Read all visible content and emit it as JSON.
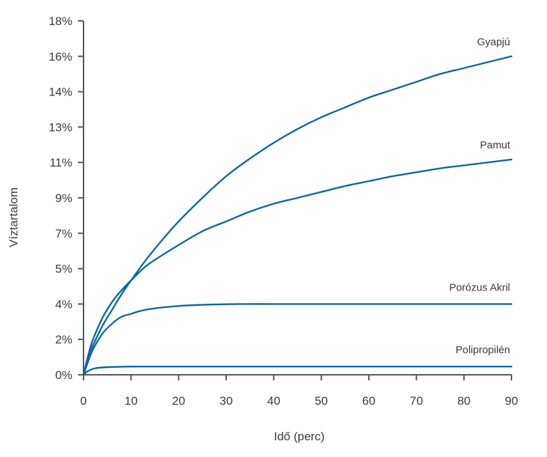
{
  "chart_data": {
    "type": "line",
    "title": "",
    "xlabel": "Idő (perc)",
    "ylabel": "Víztartalom",
    "xlim": [
      0,
      90
    ],
    "ylim": [
      0,
      18
    ],
    "x_ticks": [
      0,
      10,
      20,
      30,
      40,
      50,
      60,
      70,
      80,
      90
    ],
    "x_tick_labels": [
      "0",
      "10",
      "20",
      "30",
      "40",
      "50",
      "60",
      "70",
      "80",
      "90"
    ],
    "y_tick_values": [
      0,
      1.8,
      3.6,
      5.4,
      7.2,
      9.0,
      10.8,
      12.6,
      14.4,
      16.2,
      18.0
    ],
    "y_tick_labels": [
      "0%",
      "2%",
      "4%",
      "5%",
      "7%",
      "9%",
      "11%",
      "13%",
      "14%",
      "16%",
      "18%"
    ],
    "grid": false,
    "legend": "inline labels at line ends",
    "line_color": "#0a66a8",
    "series": [
      {
        "name": "Gyapjú",
        "x": [
          0,
          1,
          2,
          4,
          6,
          8,
          10,
          13,
          16,
          20,
          25,
          30,
          35,
          40,
          45,
          50,
          55,
          60,
          65,
          70,
          75,
          80,
          85,
          90
        ],
        "y": [
          0,
          0.9,
          1.5,
          2.5,
          3.3,
          4.1,
          4.8,
          5.8,
          6.7,
          7.8,
          9.0,
          10.1,
          11.0,
          11.8,
          12.5,
          13.1,
          13.6,
          14.1,
          14.5,
          14.9,
          15.3,
          15.6,
          15.9,
          16.2
        ]
      },
      {
        "name": "Pamut",
        "x": [
          0,
          1,
          2,
          4,
          6,
          8,
          10,
          13,
          16,
          20,
          25,
          30,
          35,
          40,
          45,
          50,
          55,
          60,
          65,
          70,
          75,
          80,
          85,
          90
        ],
        "y": [
          0,
          1.0,
          1.8,
          2.9,
          3.7,
          4.3,
          4.8,
          5.5,
          6.0,
          6.6,
          7.3,
          7.8,
          8.3,
          8.7,
          9.0,
          9.3,
          9.6,
          9.85,
          10.1,
          10.3,
          10.5,
          10.65,
          10.8,
          10.95
        ]
      },
      {
        "name": "Porózus Akril",
        "x": [
          0,
          1,
          2,
          4,
          6,
          8,
          10,
          12,
          15,
          20,
          25,
          30,
          35,
          40,
          50,
          60,
          70,
          80,
          90
        ],
        "y": [
          0,
          0.7,
          1.3,
          2.1,
          2.6,
          2.95,
          3.1,
          3.25,
          3.38,
          3.5,
          3.56,
          3.59,
          3.6,
          3.6,
          3.6,
          3.6,
          3.6,
          3.6,
          3.6
        ]
      },
      {
        "name": "Polipropilén",
        "x": [
          0,
          0.5,
          1,
          2,
          3,
          5,
          8,
          10,
          20,
          30,
          40,
          50,
          60,
          70,
          80,
          90
        ],
        "y": [
          0,
          0.12,
          0.2,
          0.3,
          0.35,
          0.39,
          0.41,
          0.42,
          0.42,
          0.42,
          0.42,
          0.42,
          0.42,
          0.42,
          0.42,
          0.42
        ]
      }
    ]
  }
}
